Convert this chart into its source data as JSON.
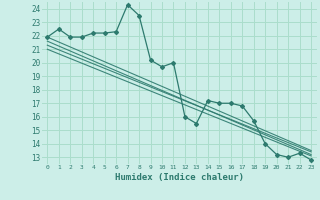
{
  "xlabel": "Humidex (Indice chaleur)",
  "bg_color": "#cceee8",
  "grid_color": "#aaddcc",
  "line_color": "#2d7a6e",
  "xlim": [
    -0.5,
    23.5
  ],
  "ylim": [
    12.5,
    24.5
  ],
  "yticks": [
    13,
    14,
    15,
    16,
    17,
    18,
    19,
    20,
    21,
    22,
    23,
    24
  ],
  "xticks": [
    0,
    1,
    2,
    3,
    4,
    5,
    6,
    7,
    8,
    9,
    10,
    11,
    12,
    13,
    14,
    15,
    16,
    17,
    18,
    19,
    20,
    21,
    22,
    23
  ],
  "series": [
    [
      0,
      21.9
    ],
    [
      1,
      22.5
    ],
    [
      2,
      21.9
    ],
    [
      3,
      21.9
    ],
    [
      4,
      22.2
    ],
    [
      5,
      22.2
    ],
    [
      6,
      22.3
    ],
    [
      7,
      24.3
    ],
    [
      8,
      23.5
    ],
    [
      9,
      20.2
    ],
    [
      10,
      19.7
    ],
    [
      11,
      20.0
    ],
    [
      12,
      16.0
    ],
    [
      13,
      15.5
    ],
    [
      14,
      17.2
    ],
    [
      15,
      17.0
    ],
    [
      16,
      17.0
    ],
    [
      17,
      16.8
    ],
    [
      18,
      15.7
    ],
    [
      19,
      14.0
    ],
    [
      20,
      13.2
    ],
    [
      21,
      13.0
    ],
    [
      22,
      13.3
    ],
    [
      23,
      12.8
    ]
  ],
  "linear1": [
    [
      0,
      21.9
    ],
    [
      23,
      13.5
    ]
  ],
  "linear2": [
    [
      0,
      21.6
    ],
    [
      23,
      13.2
    ]
  ],
  "linear3": [
    [
      0,
      21.3
    ],
    [
      23,
      13.4
    ]
  ],
  "linear4": [
    [
      0,
      21.0
    ],
    [
      23,
      13.1
    ]
  ]
}
